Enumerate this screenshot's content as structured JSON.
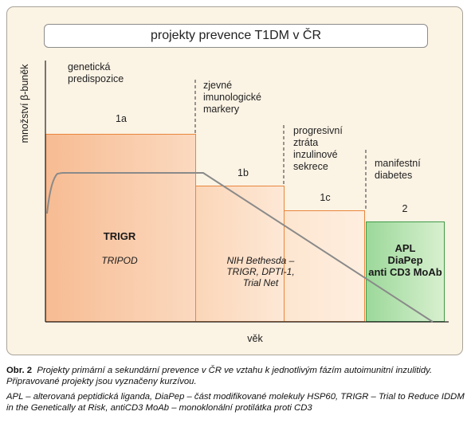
{
  "title": "projekty prevence T1DM v ČR",
  "axes": {
    "ylabel": "množství β-buněk",
    "xlabel": "věk"
  },
  "stages": [
    {
      "label": [
        "genetická",
        "predispozice"
      ]
    },
    {
      "label": [
        "zjevné",
        "imunologické",
        "markery"
      ]
    },
    {
      "label": [
        "progresivní",
        "ztráta",
        "inzulinové",
        "sekrece"
      ]
    },
    {
      "label": [
        "manifestní",
        "diabetes"
      ]
    }
  ],
  "blocks": {
    "b1a": {
      "id": "1a",
      "projects": "TRIGR",
      "projects_planned": "TRIPOD"
    },
    "b1b": {
      "id": "1b",
      "projects_line1": "NIH Bethesda –",
      "projects_line2": "TRIGR, DPTI-1,",
      "projects_line3": "Trial Net"
    },
    "b1c": {
      "id": "1c"
    },
    "b2": {
      "id": "2",
      "projects_line1": "APL",
      "projects_line2": "DiaPep",
      "projects_line3": "anti CD3 MoAb"
    }
  },
  "caption": {
    "label": "Obr. 2",
    "text": "Projekty primární a sekundární prevence v ČR ve vztahu k jednotlivým fázím autoimunitní inzulitidy. Připravované projekty jsou vyznačeny kurzívou.",
    "abbrev": "APL – alterovaná peptidická liganda, DiaPep – část modifikované molekuly HSP60, TRIGR – Trial to Reduce IDDM in the Genetically at Risk, antiCD3 MoAb – monoklonální protilátka proti CD3"
  },
  "colors": {
    "orange": "#e8863c",
    "green": "#3e9a48",
    "curve": "#8a8a8a"
  }
}
